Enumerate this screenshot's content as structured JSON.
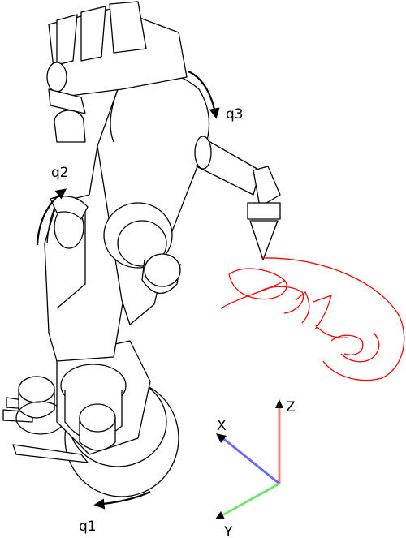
{
  "joints": {
    "q1": "q1",
    "q2": "q2",
    "q3": "q3"
  },
  "axes": {
    "x": "X",
    "y": "Y",
    "z": "Z"
  },
  "handwriting": "aptec",
  "colors": {
    "x_axis": "#6a6aff",
    "y_axis": "#6ee66e",
    "z_axis": "#ff7a7a",
    "writing": "#ff0000",
    "arrow": "#000000"
  }
}
